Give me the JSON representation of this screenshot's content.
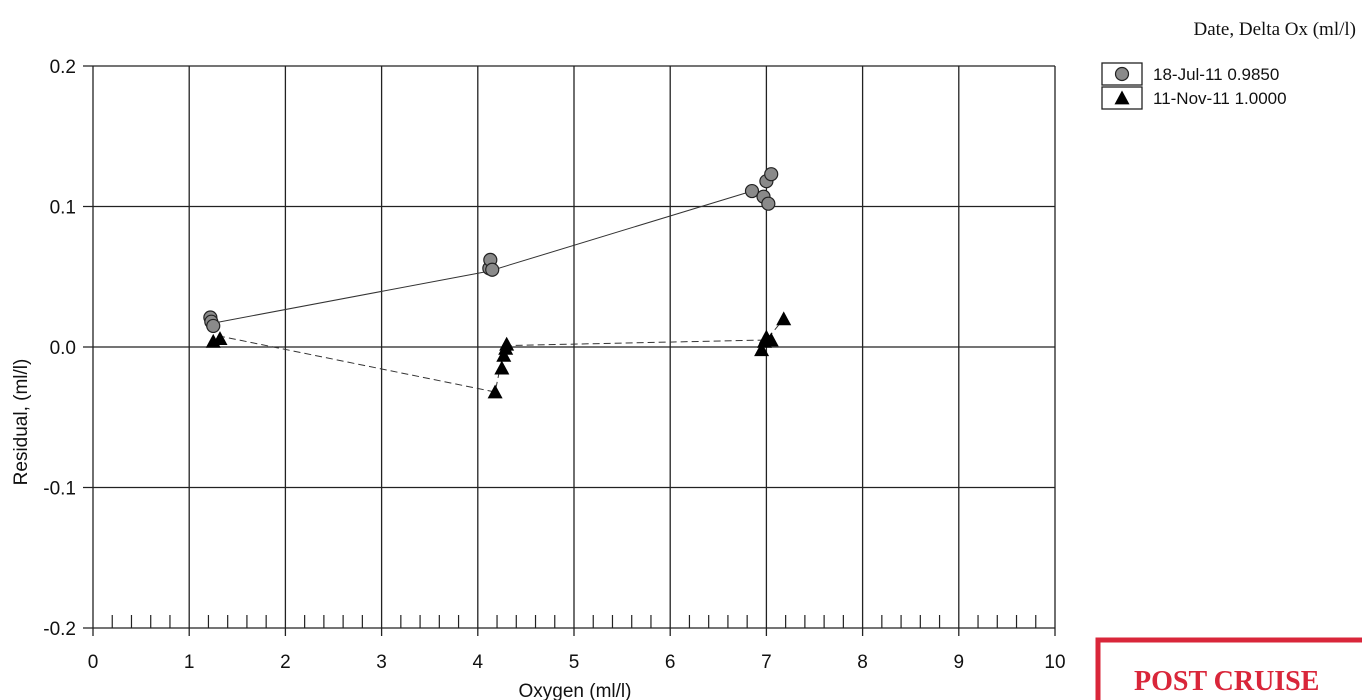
{
  "chart_data": {
    "type": "scatter",
    "xlabel": "Oxygen (ml/l)",
    "ylabel": "Residual, (ml/l)",
    "xlim": [
      0,
      10
    ],
    "ylim": [
      -0.2,
      0.2
    ],
    "x_ticks": [
      "0",
      "1",
      "2",
      "3",
      "4",
      "5",
      "6",
      "7",
      "8",
      "9",
      "10"
    ],
    "y_ticks": [
      "0.2",
      "0.1",
      "0.0",
      "-0.1",
      "-0.2"
    ],
    "grid": true,
    "legend_title": "Date, Delta Ox (ml/l)",
    "legend_position": "top-right",
    "series": [
      {
        "name": "18-Jul-11 0.9850",
        "marker": "circle",
        "line_style": "solid",
        "color": "#8a8a8a",
        "points": [
          [
            1.22,
            0.021
          ],
          [
            1.23,
            0.018
          ],
          [
            1.25,
            0.015
          ],
          [
            4.12,
            0.056
          ],
          [
            4.13,
            0.062
          ],
          [
            4.15,
            0.055
          ],
          [
            6.85,
            0.111
          ],
          [
            6.97,
            0.107
          ],
          [
            7.0,
            0.118
          ],
          [
            7.02,
            0.102
          ],
          [
            7.05,
            0.123
          ]
        ],
        "fit_line": [
          [
            1.25,
            0.017
          ],
          [
            4.12,
            0.054
          ],
          [
            6.9,
            0.112
          ]
        ]
      },
      {
        "name": "11-Nov-11 1.0000",
        "marker": "triangle",
        "line_style": "dashed",
        "color": "#000000",
        "points": [
          [
            1.25,
            0.004
          ],
          [
            1.32,
            0.006
          ],
          [
            4.18,
            -0.032
          ],
          [
            4.25,
            -0.015
          ],
          [
            4.27,
            -0.006
          ],
          [
            4.29,
            -0.001
          ],
          [
            4.3,
            0.002
          ],
          [
            6.95,
            -0.002
          ],
          [
            6.98,
            0.004
          ],
          [
            7.0,
            0.007
          ],
          [
            7.05,
            0.005
          ],
          [
            7.18,
            0.02
          ]
        ],
        "fit_line": [
          [
            1.3,
            0.008
          ],
          [
            4.18,
            -0.032
          ],
          [
            4.28,
            0.001
          ],
          [
            7.0,
            0.005
          ],
          [
            7.18,
            0.02
          ]
        ]
      }
    ]
  },
  "stamp": {
    "text": "POST CRUISE",
    "color": "#d9263a"
  }
}
